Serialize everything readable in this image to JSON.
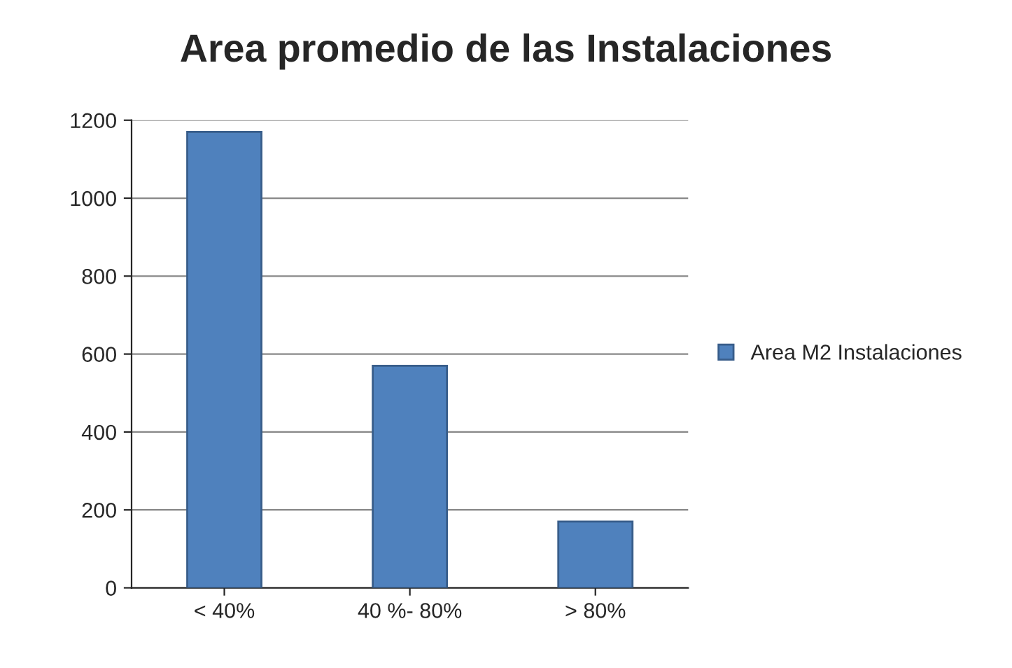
{
  "chart_data": {
    "type": "bar",
    "title": "Area promedio de las Instalaciones",
    "categories": [
      "< 40%",
      "40 %- 80%",
      "> 80%"
    ],
    "series": [
      {
        "name": "Area M2 Instalaciones",
        "color": "#4f81bd",
        "values": [
          1170,
          570,
          170
        ]
      }
    ],
    "ylim": [
      0,
      1200
    ],
    "yticks": [
      0,
      200,
      400,
      600,
      800,
      1000,
      1200
    ],
    "grid": "y",
    "legend": "right"
  }
}
